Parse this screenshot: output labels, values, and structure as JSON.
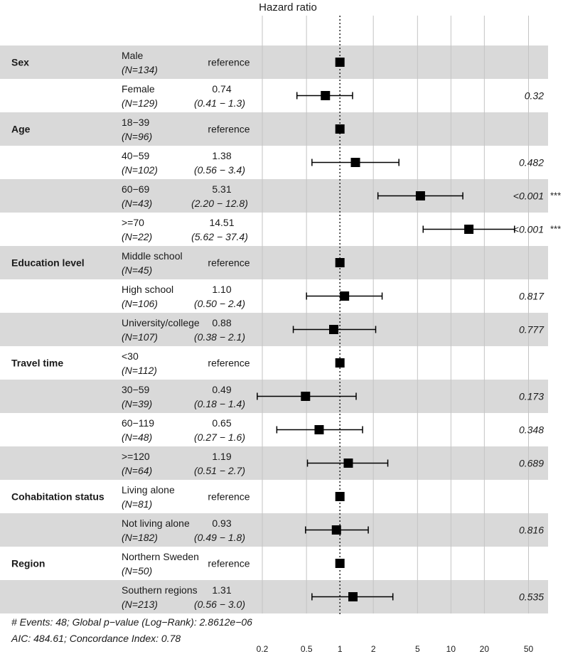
{
  "chart_data": {
    "type": "forest",
    "title": "Hazard ratio",
    "x_scale": "log",
    "xlim": [
      0.17,
      75
    ],
    "x_ticks": [
      "0.2",
      "0.5",
      "1",
      "2",
      "5",
      "10",
      "20",
      "50"
    ],
    "reference_line": 1,
    "rows": [
      {
        "variable": "Sex",
        "level": "Male",
        "n": "(N=134)",
        "hr_text": "reference",
        "ci_text": "",
        "hr": 1,
        "lo": null,
        "hi": null,
        "p": "",
        "sig": ""
      },
      {
        "variable": "",
        "level": "Female",
        "n": "(N=129)",
        "hr_text": "0.74",
        "ci_text": "(0.41 − 1.3)",
        "hr": 0.74,
        "lo": 0.41,
        "hi": 1.3,
        "p": "0.32",
        "sig": ""
      },
      {
        "variable": "Age",
        "level": "18−39",
        "n": "(N=96)",
        "hr_text": "reference",
        "ci_text": "",
        "hr": 1,
        "lo": null,
        "hi": null,
        "p": "",
        "sig": ""
      },
      {
        "variable": "",
        "level": "40−59",
        "n": "(N=102)",
        "hr_text": "1.38",
        "ci_text": "(0.56 − 3.4)",
        "hr": 1.38,
        "lo": 0.56,
        "hi": 3.4,
        "p": "0.482",
        "sig": ""
      },
      {
        "variable": "",
        "level": "60−69",
        "n": "(N=43)",
        "hr_text": "5.31",
        "ci_text": "(2.20 − 12.8)",
        "hr": 5.31,
        "lo": 2.2,
        "hi": 12.8,
        "p": "<0.001",
        "sig": "***"
      },
      {
        "variable": "",
        "level": ">=70",
        "n": "(N=22)",
        "hr_text": "14.51",
        "ci_text": "(5.62 − 37.4)",
        "hr": 14.51,
        "lo": 5.62,
        "hi": 37.4,
        "p": "<0.001",
        "sig": "***"
      },
      {
        "variable": "Education level",
        "level": "Middle school",
        "n": "(N=45)",
        "hr_text": "reference",
        "ci_text": "",
        "hr": 1,
        "lo": null,
        "hi": null,
        "p": "",
        "sig": ""
      },
      {
        "variable": "",
        "level": "High school",
        "n": "(N=106)",
        "hr_text": "1.10",
        "ci_text": "(0.50 − 2.4)",
        "hr": 1.1,
        "lo": 0.5,
        "hi": 2.4,
        "p": "0.817",
        "sig": ""
      },
      {
        "variable": "",
        "level": "University/college",
        "n": "(N=107)",
        "hr_text": "0.88",
        "ci_text": "(0.38 − 2.1)",
        "hr": 0.88,
        "lo": 0.38,
        "hi": 2.1,
        "p": "0.777",
        "sig": ""
      },
      {
        "variable": "Travel time",
        "level": "<30",
        "n": "(N=112)",
        "hr_text": "reference",
        "ci_text": "",
        "hr": 1,
        "lo": null,
        "hi": null,
        "p": "",
        "sig": ""
      },
      {
        "variable": "",
        "level": "30−59",
        "n": "(N=39)",
        "hr_text": "0.49",
        "ci_text": "(0.18 − 1.4)",
        "hr": 0.49,
        "lo": 0.18,
        "hi": 1.4,
        "p": "0.173",
        "sig": ""
      },
      {
        "variable": "",
        "level": "60−119",
        "n": "(N=48)",
        "hr_text": "0.65",
        "ci_text": "(0.27 − 1.6)",
        "hr": 0.65,
        "lo": 0.27,
        "hi": 1.6,
        "p": "0.348",
        "sig": ""
      },
      {
        "variable": "",
        "level": ">=120",
        "n": "(N=64)",
        "hr_text": "1.19",
        "ci_text": "(0.51 − 2.7)",
        "hr": 1.19,
        "lo": 0.51,
        "hi": 2.7,
        "p": "0.689",
        "sig": ""
      },
      {
        "variable": "Cohabitation status",
        "level": "Living alone",
        "n": "(N=81)",
        "hr_text": "reference",
        "ci_text": "",
        "hr": 1,
        "lo": null,
        "hi": null,
        "p": "",
        "sig": ""
      },
      {
        "variable": "",
        "level": "Not living alone",
        "n": "(N=182)",
        "hr_text": "0.93",
        "ci_text": "(0.49 − 1.8)",
        "hr": 0.93,
        "lo": 0.49,
        "hi": 1.8,
        "p": "0.816",
        "sig": ""
      },
      {
        "variable": "Region",
        "level": "Northern Sweden",
        "n": "(N=50)",
        "hr_text": "reference",
        "ci_text": "",
        "hr": 1,
        "lo": null,
        "hi": null,
        "p": "",
        "sig": ""
      },
      {
        "variable": "",
        "level": "Southern regions",
        "n": "(N=213)",
        "hr_text": "1.31",
        "ci_text": "(0.56 − 3.0)",
        "hr": 1.31,
        "lo": 0.56,
        "hi": 3.0,
        "p": "0.535",
        "sig": ""
      }
    ],
    "footer": [
      "# Events: 48; Global p−value (Log−Rank): 2.8612e−06",
      "AIC: 484.61; Concordance Index: 0.78"
    ]
  }
}
